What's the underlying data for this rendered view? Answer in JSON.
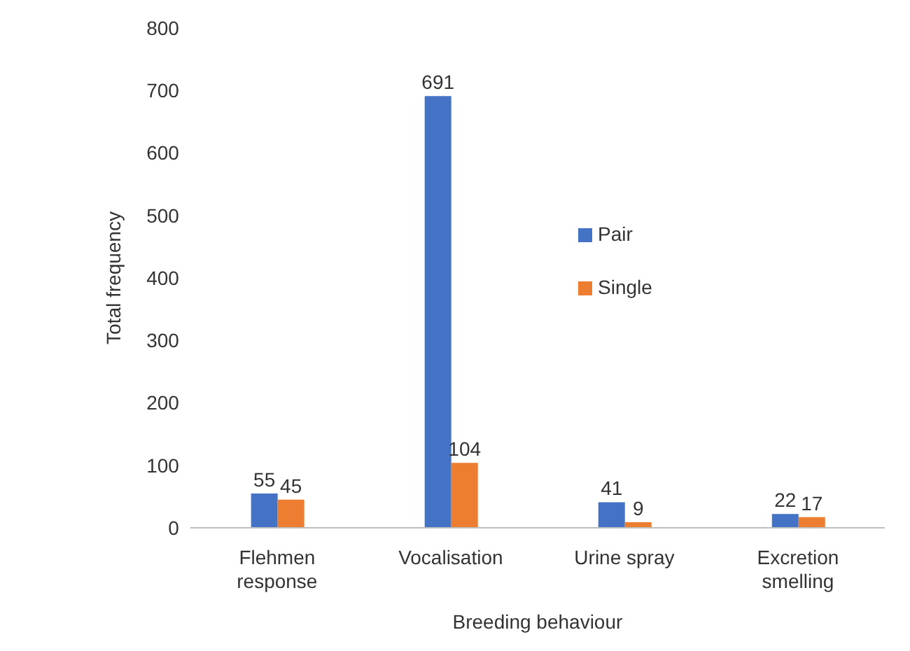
{
  "chart_data": {
    "type": "bar",
    "xlabel": "Breeding behaviour",
    "ylabel": "Total frequency",
    "categories": [
      "Flehmen response",
      "Vocalisation",
      "Urine spray",
      "Excretion smelling"
    ],
    "series": [
      {
        "name": "Pair",
        "color": "#4472c4",
        "values": [
          55,
          691,
          41,
          22
        ]
      },
      {
        "name": "Single",
        "color": "#ed7d31",
        "values": [
          45,
          104,
          9,
          17
        ]
      }
    ],
    "ylim": [
      0,
      800
    ],
    "yticks": [
      0,
      100,
      200,
      300,
      400,
      500,
      600,
      700,
      800
    ],
    "data_labels": true,
    "legend": "center",
    "grid": false
  }
}
